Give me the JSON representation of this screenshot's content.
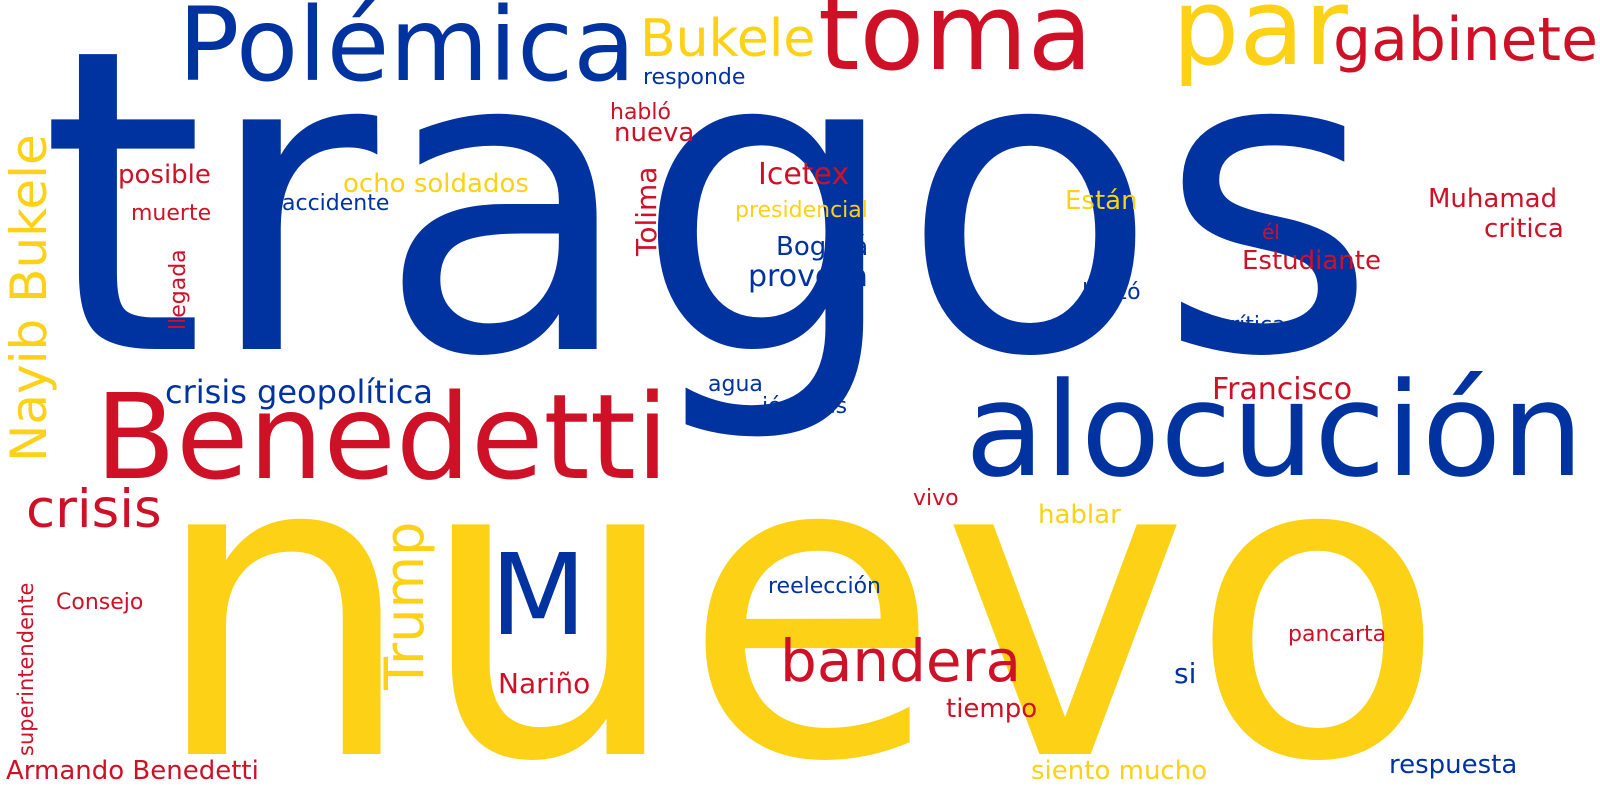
{
  "palette": {
    "blue": "#0033a0",
    "yellow": "#fcd116",
    "red": "#ce1126"
  },
  "words": [
    {
      "id": "tragos",
      "text": "tragos",
      "color": "blue"
    },
    {
      "id": "nuevo",
      "text": "nuevo",
      "color": "yellow"
    },
    {
      "id": "alocucion",
      "text": "alocución",
      "color": "blue"
    },
    {
      "id": "benedetti",
      "text": "Benedetti",
      "color": "red"
    },
    {
      "id": "polemica",
      "text": "Polémica",
      "color": "blue"
    },
    {
      "id": "toma",
      "text": "toma",
      "color": "red"
    },
    {
      "id": "par",
      "text": "par",
      "color": "yellow"
    },
    {
      "id": "gabinete",
      "text": "gabinete",
      "color": "red"
    },
    {
      "id": "bukele",
      "text": "Bukele",
      "color": "yellow"
    },
    {
      "id": "nayib-bukele",
      "text": "Nayib Bukele",
      "color": "yellow"
    },
    {
      "id": "m",
      "text": "M",
      "color": "blue"
    },
    {
      "id": "bandera",
      "text": "bandera",
      "color": "red"
    },
    {
      "id": "crisis",
      "text": "crisis",
      "color": "red"
    },
    {
      "id": "trump",
      "text": "Trump",
      "color": "yellow"
    },
    {
      "id": "crisis-geopolitica",
      "text": "crisis geopolítica",
      "color": "blue"
    },
    {
      "id": "francisco",
      "text": "Francisco",
      "color": "red"
    },
    {
      "id": "icetex",
      "text": "Icetex",
      "color": "red"
    },
    {
      "id": "provoca",
      "text": "provoca",
      "color": "blue"
    },
    {
      "id": "bogota",
      "text": "Bogotá",
      "color": "blue"
    },
    {
      "id": "tolima",
      "text": "Tolima",
      "color": "red"
    },
    {
      "id": "ocho-soldados",
      "text": "ocho soldados",
      "color": "yellow"
    },
    {
      "id": "muhamad",
      "text": "Muhamad",
      "color": "red"
    },
    {
      "id": "critica-lower",
      "text": "critica",
      "color": "red"
    },
    {
      "id": "estudiante",
      "text": "Estudiante",
      "color": "red"
    },
    {
      "id": "estan",
      "text": "Están",
      "color": "yellow"
    },
    {
      "id": "posible",
      "text": "posible",
      "color": "red"
    },
    {
      "id": "nueva",
      "text": "nueva",
      "color": "red"
    },
    {
      "id": "hablo",
      "text": "habló",
      "color": "red"
    },
    {
      "id": "responde",
      "text": "responde",
      "color": "blue"
    },
    {
      "id": "accidente",
      "text": "accidente",
      "color": "blue"
    },
    {
      "id": "presidencial",
      "text": "presidencial",
      "color": "yellow"
    },
    {
      "id": "muerte",
      "text": "muerte",
      "color": "red"
    },
    {
      "id": "llegada",
      "text": "llegada",
      "color": "red"
    },
    {
      "id": "lanzo",
      "text": "lanzó",
      "color": "blue"
    },
    {
      "id": "critica-accent",
      "text": "crítica",
      "color": "blue"
    },
    {
      "id": "el",
      "text": "él",
      "color": "red"
    },
    {
      "id": "agua",
      "text": "agua",
      "color": "blue"
    },
    {
      "id": "jovenes",
      "text": "jóvenes",
      "color": "blue"
    },
    {
      "id": "vivo",
      "text": "vivo",
      "color": "red"
    },
    {
      "id": "hablar",
      "text": "hablar",
      "color": "yellow"
    },
    {
      "id": "reeleccion",
      "text": "reelección",
      "color": "blue"
    },
    {
      "id": "consejo",
      "text": "Consejo",
      "color": "red"
    },
    {
      "id": "superintendente",
      "text": "superintendente",
      "color": "red"
    },
    {
      "id": "narino",
      "text": "Nariño",
      "color": "red"
    },
    {
      "id": "pancarta",
      "text": "pancarta",
      "color": "red"
    },
    {
      "id": "si",
      "text": "si",
      "color": "blue"
    },
    {
      "id": "tiempo",
      "text": "tiempo",
      "color": "red"
    },
    {
      "id": "armando-benedetti",
      "text": "Armando Benedetti",
      "color": "red"
    },
    {
      "id": "siento-mucho",
      "text": "siento mucho",
      "color": "yellow"
    },
    {
      "id": "respuesta",
      "text": "respuesta",
      "color": "blue"
    }
  ]
}
